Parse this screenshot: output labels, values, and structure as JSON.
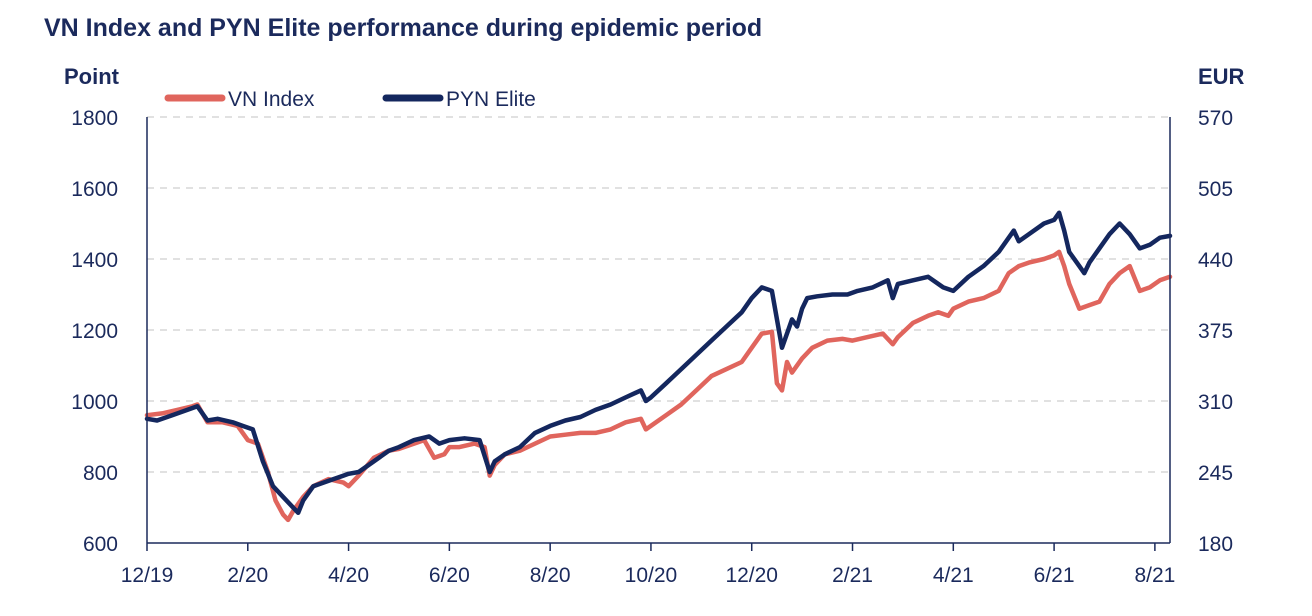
{
  "chart_data": {
    "type": "line",
    "title": "VN Index and PYN Elite performance during epidemic period",
    "ylabel_left": "Point",
    "ylabel_right": "EUR",
    "xlabel": "",
    "ylim_left": [
      600,
      1800
    ],
    "ylim_right": [
      180,
      570
    ],
    "yticks_left": [
      600,
      800,
      1000,
      1200,
      1400,
      1600,
      1800
    ],
    "yticks_right": [
      180,
      245,
      310,
      375,
      440,
      505,
      570
    ],
    "x_range": [
      0,
      20.3
    ],
    "x_ticks": [
      {
        "x": 0,
        "label": "12/19"
      },
      {
        "x": 2,
        "label": "2/20"
      },
      {
        "x": 4,
        "label": "4/20"
      },
      {
        "x": 6,
        "label": "6/20"
      },
      {
        "x": 8,
        "label": "8/20"
      },
      {
        "x": 10,
        "label": "10/20"
      },
      {
        "x": 12,
        "label": "12/20"
      },
      {
        "x": 14,
        "label": "2/21"
      },
      {
        "x": 16,
        "label": "4/21"
      },
      {
        "x": 18,
        "label": "6/21"
      },
      {
        "x": 20,
        "label": "8/21"
      }
    ],
    "grid": "horizontal-dashed",
    "legend_position": "top-left",
    "colors": {
      "vn_index": "#e0655d",
      "pyn_elite": "#14275e",
      "grid": "#cfcfcf",
      "axis": "#1b2a5c"
    },
    "series": [
      {
        "name": "VN Index",
        "axis": "left",
        "x": [
          0,
          0.3,
          0.6,
          0.9,
          1.0,
          1.2,
          1.5,
          1.8,
          2.0,
          2.2,
          2.4,
          2.55,
          2.7,
          2.8,
          2.9,
          3.0,
          3.1,
          3.3,
          3.6,
          3.9,
          4.0,
          4.2,
          4.5,
          4.8,
          5.0,
          5.3,
          5.5,
          5.7,
          5.9,
          6.0,
          6.2,
          6.5,
          6.7,
          6.8,
          6.9,
          7.1,
          7.4,
          7.7,
          8.0,
          8.3,
          8.6,
          8.9,
          9.2,
          9.5,
          9.8,
          9.9,
          10.0,
          10.3,
          10.6,
          10.9,
          11.2,
          11.5,
          11.8,
          12.0,
          12.2,
          12.4,
          12.5,
          12.6,
          12.7,
          12.8,
          13.0,
          13.2,
          13.5,
          13.8,
          14.0,
          14.3,
          14.6,
          14.8,
          14.9,
          15.2,
          15.5,
          15.7,
          15.9,
          16.0,
          16.3,
          16.6,
          16.9,
          17.1,
          17.3,
          17.5,
          17.8,
          18.0,
          18.1,
          18.2,
          18.3,
          18.5,
          18.7,
          18.9,
          19.1,
          19.3,
          19.5,
          19.7,
          19.9,
          20.1,
          20.3
        ],
        "values": [
          960,
          965,
          975,
          985,
          990,
          940,
          940,
          930,
          890,
          880,
          800,
          720,
          680,
          665,
          690,
          710,
          730,
          760,
          780,
          770,
          760,
          790,
          840,
          860,
          865,
          880,
          890,
          840,
          850,
          870,
          870,
          880,
          870,
          790,
          820,
          850,
          860,
          880,
          900,
          905,
          910,
          910,
          920,
          940,
          950,
          920,
          930,
          960,
          990,
          1030,
          1070,
          1090,
          1110,
          1150,
          1190,
          1195,
          1050,
          1030,
          1110,
          1080,
          1120,
          1150,
          1170,
          1175,
          1170,
          1180,
          1190,
          1160,
          1180,
          1220,
          1240,
          1250,
          1240,
          1260,
          1280,
          1290,
          1310,
          1360,
          1380,
          1390,
          1400,
          1410,
          1420,
          1380,
          1330,
          1260,
          1270,
          1280,
          1330,
          1360,
          1380,
          1310,
          1320,
          1340,
          1350
        ]
      },
      {
        "name": "PYN Elite",
        "axis": "left",
        "x": [
          0,
          0.2,
          0.5,
          0.8,
          1.0,
          1.2,
          1.4,
          1.7,
          1.9,
          2.1,
          2.3,
          2.5,
          2.7,
          2.9,
          3.0,
          3.1,
          3.3,
          3.6,
          3.9,
          4.0,
          4.2,
          4.5,
          4.8,
          5.0,
          5.3,
          5.6,
          5.8,
          6.0,
          6.3,
          6.6,
          6.8,
          6.9,
          7.1,
          7.4,
          7.7,
          8.0,
          8.3,
          8.6,
          8.9,
          9.2,
          9.5,
          9.8,
          9.9,
          10.0,
          10.3,
          10.6,
          10.9,
          11.2,
          11.5,
          11.8,
          12.0,
          12.2,
          12.4,
          12.6,
          12.8,
          12.9,
          13.0,
          13.1,
          13.3,
          13.6,
          13.9,
          14.1,
          14.4,
          14.7,
          14.8,
          14.9,
          15.2,
          15.5,
          15.8,
          16.0,
          16.3,
          16.6,
          16.9,
          17.2,
          17.3,
          17.5,
          17.8,
          18.0,
          18.1,
          18.2,
          18.3,
          18.5,
          18.6,
          18.7,
          18.9,
          19.1,
          19.3,
          19.5,
          19.7,
          19.9,
          20.1,
          20.3
        ],
        "values": [
          950,
          945,
          960,
          975,
          985,
          945,
          950,
          940,
          930,
          920,
          830,
          760,
          730,
          700,
          685,
          720,
          760,
          775,
          790,
          795,
          800,
          830,
          860,
          870,
          890,
          900,
          880,
          890,
          895,
          890,
          800,
          830,
          850,
          870,
          910,
          930,
          945,
          955,
          975,
          990,
          1010,
          1030,
          1000,
          1010,
          1050,
          1090,
          1130,
          1170,
          1210,
          1250,
          1290,
          1320,
          1310,
          1150,
          1230,
          1210,
          1260,
          1290,
          1295,
          1300,
          1300,
          1310,
          1320,
          1340,
          1290,
          1330,
          1340,
          1350,
          1320,
          1310,
          1350,
          1380,
          1420,
          1480,
          1450,
          1470,
          1500,
          1510,
          1530,
          1480,
          1420,
          1380,
          1360,
          1390,
          1430,
          1470,
          1500,
          1470,
          1430,
          1440,
          1460,
          1465
        ]
      }
    ]
  }
}
